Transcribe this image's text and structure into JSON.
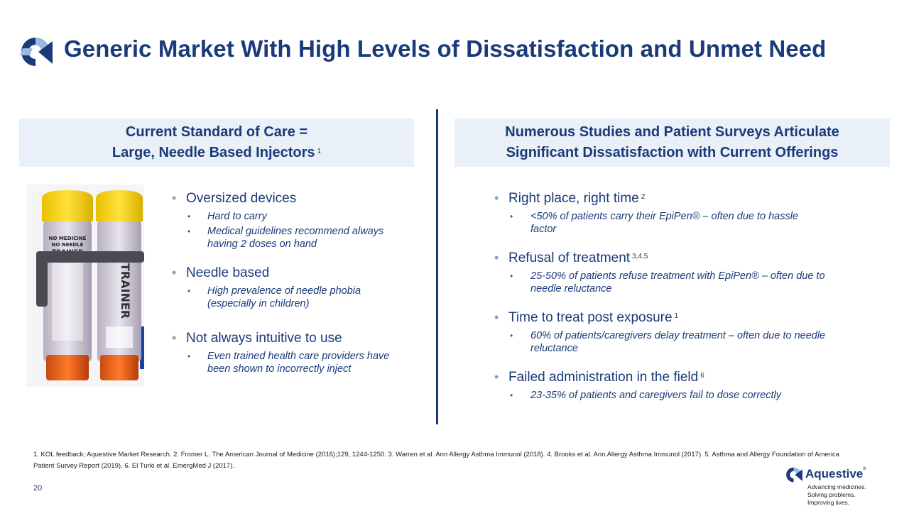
{
  "title": "Generic Market With High Levels of Dissatisfaction and Unmet Need",
  "left_header": {
    "line1": "Current Standard of Care =",
    "line2": "Large, Needle Based Injectors",
    "ref": "1"
  },
  "right_header": {
    "line1": "Numerous Studies and Patient Surveys Articulate",
    "line2": "Significant Dissatisfaction with Current Offerings"
  },
  "left_bullets": [
    {
      "text": "Oversized devices",
      "ref": "",
      "subs": [
        "Hard to carry",
        "Medical guidelines recommend always having 2 doses on hand"
      ]
    },
    {
      "text": "Needle based",
      "ref": "",
      "subs": [
        "High prevalence of needle phobia (especially in children)"
      ]
    },
    {
      "text": "Not always intuitive to use",
      "ref": "",
      "subs": [
        "Even trained health care providers have been shown to incorrectly inject"
      ]
    }
  ],
  "right_bullets": [
    {
      "text": "Right place, right time",
      "ref": "2",
      "subs": [
        "<50% of patients carry their EpiPen® – often due to hassle factor"
      ]
    },
    {
      "text": "Refusal of treatment",
      "ref": "3,4,5",
      "subs": [
        "25-50% of patients refuse treatment with EpiPen® – often due to needle reluctance"
      ]
    },
    {
      "text": "Time to treat post exposure",
      "ref": "1",
      "subs": [
        "60% of patients/caregivers delay treatment – often due to needle reluctance"
      ]
    },
    {
      "text": "Failed administration in the field",
      "ref": "6",
      "subs": [
        "23-35% of patients and caregivers fail to dose correctly"
      ]
    }
  ],
  "device_labels": {
    "left": "TRAINER",
    "right": "TRAINER"
  },
  "footnotes": "1. KOL feedback; Aquestive Market Research. 2. Fromer L. The American Journal of Medicine (2016);129, 1244-1250. 3. Warren et al. Ann Allergy Asthma Immunol (2018). 4. Brooks et al. Ann Allergy Asthma Immunol (2017). 5. Asthma and Allergy Foundation of America Patient Survey Report (2019). 6. El Turki et al. EmergMed J (2017).",
  "page_number": "20",
  "brand": {
    "name": "Aquestive",
    "reg": "®",
    "tagline": [
      "Advancing medicines.",
      "Solving problems.",
      "Improving lives."
    ]
  },
  "colors": {
    "navy": "#1a3a7a",
    "header_bg": "#e9f0f8",
    "accent_light": "#9bb8e0"
  }
}
